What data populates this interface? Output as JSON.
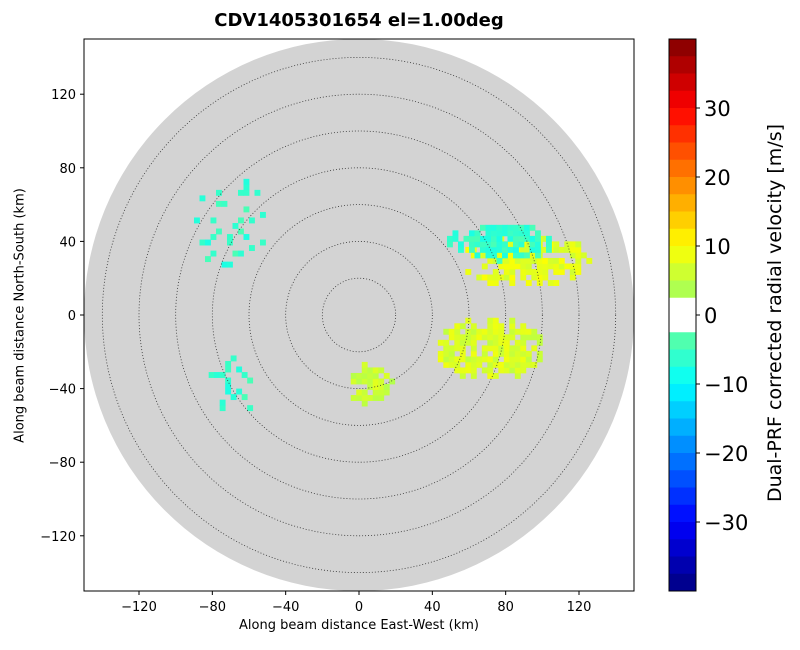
{
  "chart_data": {
    "type": "heatmap",
    "title": "CDV1405301654 el=1.00deg",
    "xlabel": "Along beam distance East-West (km)",
    "ylabel": "Along beam distance North-South (km)",
    "xlim": [
      -150,
      150
    ],
    "ylim": [
      -150,
      150
    ],
    "xticks": [
      "−120",
      "−80",
      "−40",
      "0",
      "40",
      "80",
      "120"
    ],
    "yticks": [
      "120",
      "80",
      "40",
      "0",
      "−40",
      "−80",
      "−120"
    ],
    "range_rings_km": [
      20,
      40,
      60,
      80,
      100,
      120,
      140
    ],
    "max_range_km": 150,
    "colorbar": {
      "label": "Dual-PRF corrected radial velocity [m/s]",
      "vmin": -40,
      "vmax": 40,
      "ticks": [
        "30",
        "20",
        "10",
        "0",
        "−10",
        "−20",
        "−30"
      ],
      "colormap": "jet"
    },
    "echo_regions": [
      {
        "name": "northeast-receding-band",
        "velocity_ms": 8,
        "center_km": [
          90,
          28
        ],
        "extent_km": [
          70,
          30
        ]
      },
      {
        "name": "northeast-approaching-band",
        "velocity_ms": -6,
        "center_km": [
          75,
          38
        ],
        "extent_km": [
          60,
          20
        ]
      },
      {
        "name": "east-southeast-receding-band",
        "velocity_ms": 7,
        "center_km": [
          70,
          -20
        ],
        "extent_km": [
          60,
          35
        ]
      },
      {
        "name": "south-receding-area",
        "velocity_ms": 6,
        "center_km": [
          5,
          -40
        ],
        "extent_km": [
          25,
          25
        ]
      },
      {
        "name": "northwest-scattered-echoes",
        "velocity_ms": -6,
        "center_km": [
          -70,
          50
        ],
        "extent_km": [
          40,
          60
        ]
      },
      {
        "name": "west-scattered-echoes",
        "velocity_ms": -6,
        "center_km": [
          -70,
          -40
        ],
        "extent_km": [
          30,
          30
        ]
      }
    ],
    "colors": {
      "background_disk": "#d3d3d3",
      "ring": "#333333"
    }
  }
}
